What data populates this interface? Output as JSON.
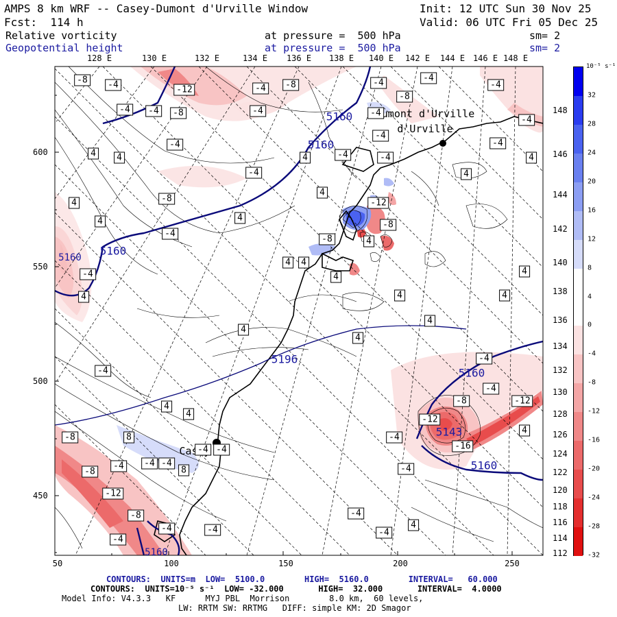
{
  "header": {
    "model_title": "AMPS 8 km WRF -- Casey-Dumont d'Urville Window",
    "init": "Init: 12 UTC Sun 30 Nov 25",
    "forecast": "Fcst:  114 h",
    "valid": "Valid: 06 UTC Fri 05 Dec 25",
    "field1_name": "Relative vorticity",
    "field1_pressure": "at pressure =  500 hPa",
    "field1_sm": "sm= 2",
    "field2_name": "Geopotential height",
    "field2_pressure": "at pressure =  500 hPa",
    "field2_sm": "sm= 2"
  },
  "map": {
    "top_longitudes": [
      "128 E",
      "130 E",
      "132 E",
      "134 E",
      "136 E",
      "138 E",
      "140 E",
      "142 E",
      "144 E",
      "146 E",
      "148 E"
    ],
    "right_latitudes": [
      "148 E",
      "146 E",
      "144 E",
      "142 E",
      "140 E",
      "138 E",
      "136 E",
      "134 E",
      "132 E",
      "130 E",
      "128 E",
      "126 E",
      "124 E",
      "122 E",
      "120 E",
      "118 E",
      "116 E",
      "114 E",
      "112 E"
    ],
    "y_axis": [
      "600",
      "550",
      "500",
      "450"
    ],
    "x_axis": [
      "50",
      "100",
      "150",
      "200",
      "250"
    ],
    "stations": [
      "Dumont\nd'Urville",
      "Casey"
    ],
    "height_labels": [
      "5160",
      "5160",
      "5160",
      "5160",
      "5160",
      "5196",
      "5143",
      "5160",
      "5160"
    ],
    "vort_labels": [
      "-8",
      "-4",
      "-12",
      "-4",
      "-8",
      "-4",
      "-8",
      "-4",
      "-4",
      "-4",
      "-4",
      "-8",
      "-4",
      "-4",
      "-4",
      "-4",
      "-4",
      "-4",
      "4",
      "4",
      "4",
      "-4",
      "-4",
      "4",
      "4",
      "-4",
      "4",
      "4",
      "-8",
      "-12",
      "4",
      "-8",
      "4",
      "-4",
      "4",
      "-8",
      "4",
      "4",
      "4",
      "4",
      "4",
      "4",
      "-4",
      "4",
      "4",
      "4",
      "4",
      "-4",
      "-4",
      "-4",
      "4",
      "8",
      "-8",
      "4",
      "8",
      "-8",
      "-4",
      "-4",
      "-8",
      "-12",
      "-4",
      "-12",
      "-12",
      "-16",
      "-4",
      "-4",
      "4",
      "-4",
      "-4",
      "-4",
      "4",
      "-8",
      "-4",
      "-4",
      "-4",
      "-4"
    ]
  },
  "colorbar": {
    "unit": "10⁻⁵ s⁻¹",
    "labels": [
      "32",
      "28",
      "24",
      "20",
      "16",
      "12",
      "8",
      "4",
      "0",
      "-4",
      "-8",
      "-12",
      "-16",
      "-20",
      "-24",
      "-28",
      "-32"
    ],
    "colors": [
      "#0000f0",
      "#2a3cf0",
      "#4a62f0",
      "#6a80f0",
      "#8c9ef3",
      "#b0bcf6",
      "#d6dcfa",
      "#ffffff",
      "#ffffff",
      "#fbe2e2",
      "#f8c4c4",
      "#f4a6a6",
      "#f08888",
      "#ec6a6a",
      "#e84c4c",
      "#e42e2e",
      "#e01010"
    ]
  },
  "footer": {
    "line1": "CONTOURS:  UNITS=m  LOW=  5100.0        HIGH=  5160.0        INTERVAL=   60.000",
    "line2": "CONTOURS:  UNITS=10⁻⁵ s⁻¹  LOW= -32.000       HIGH=  32.000       INTERVAL=  4.0000",
    "line3": "Model Info: V4.3.3   KF      MYJ PBL  Morrison        8.0 km,  60 levels,",
    "line4": "LW: RRTM SW: RRTMG   DIFF: simple KM: 2D Smagor"
  }
}
